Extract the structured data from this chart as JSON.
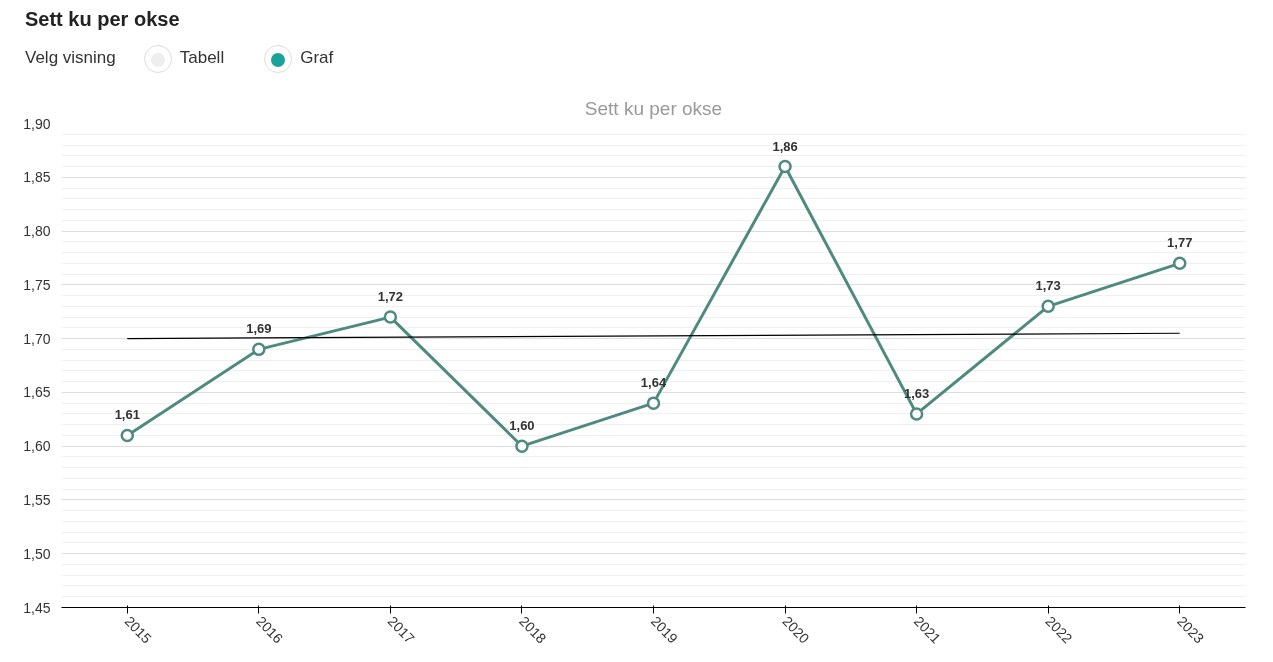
{
  "chart_data": {
    "type": "line",
    "title": "Sett ku per okse",
    "subtitle": "Sett ku per okse",
    "annotations": [
      "Velg visning",
      "Tabell",
      "Graf"
    ],
    "categories": [
      "2015",
      "2016",
      "2017",
      "2018",
      "2019",
      "2020",
      "2021",
      "2022",
      "2023"
    ],
    "series": [
      {
        "color": "#4e8a80",
        "values": [
          1.61,
          1.69,
          1.72,
          1.6,
          1.64,
          1.86,
          1.63,
          1.73,
          1.77
        ],
        "value_labels": [
          "1,61",
          "1,69",
          "1,72",
          "1,60",
          "1,64",
          "1,86",
          "1,63",
          "1,73",
          "1,77"
        ],
        "marker": "circle"
      },
      {
        "type": "line",
        "color": "#000000",
        "values": [
          1.7,
          null,
          null,
          null,
          null,
          null,
          null,
          null,
          1.705
        ],
        "marker": "none"
      }
    ],
    "ylim": [
      1.45,
      1.9
    ],
    "yticks": [
      {
        "value": 1.45,
        "label": "1,45"
      },
      {
        "value": 1.5,
        "label": "1,50"
      },
      {
        "value": 1.55,
        "label": "1,55"
      },
      {
        "value": 1.6,
        "label": "1,60"
      },
      {
        "value": 1.65,
        "label": "1,65"
      },
      {
        "value": 1.7,
        "label": "1,70"
      },
      {
        "value": 1.75,
        "label": "1,75"
      },
      {
        "value": 1.8,
        "label": "1,80"
      },
      {
        "value": 1.85,
        "label": "1,85"
      },
      {
        "value": 1.9,
        "label": "1,90"
      }
    ],
    "grid": "y"
  }
}
